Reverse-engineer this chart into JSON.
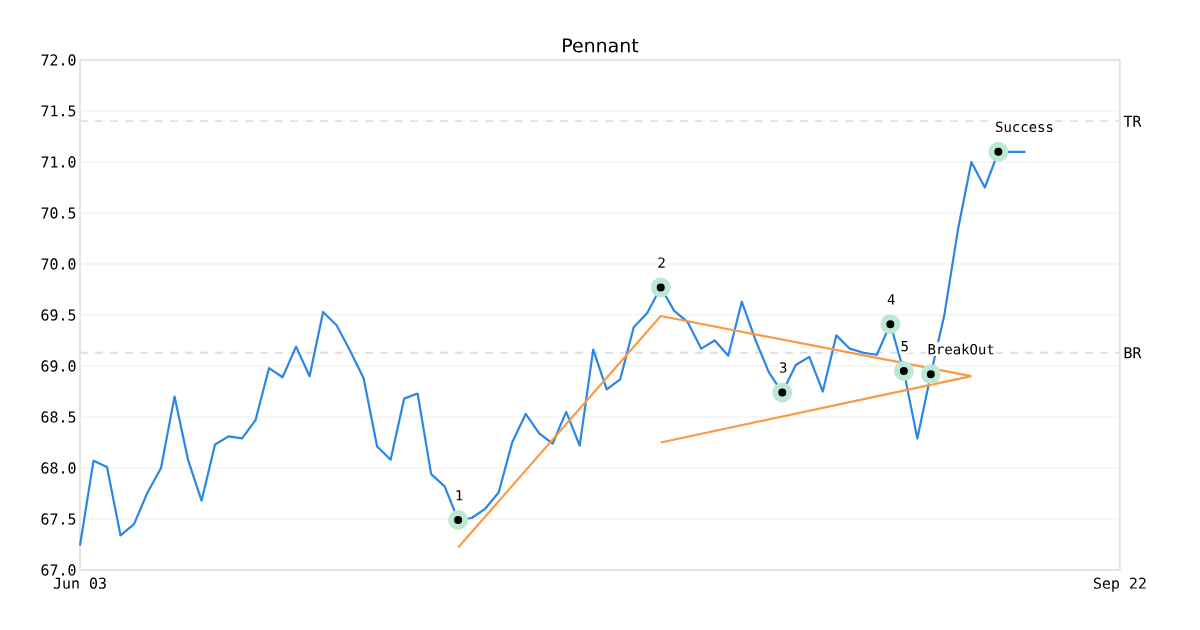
{
  "chart_data": {
    "type": "line",
    "title": "Pennant",
    "categories": [
      "Jun 03",
      null,
      null,
      null,
      null,
      null,
      null,
      null,
      null,
      null,
      null,
      null,
      null,
      null,
      null,
      null,
      null,
      null,
      null,
      null,
      null,
      null,
      null,
      null,
      null,
      null,
      null,
      null,
      null,
      null,
      null,
      null,
      null,
      null,
      null,
      null,
      null,
      null,
      null,
      null,
      null,
      null,
      null,
      null,
      null,
      null,
      null,
      null,
      null,
      null,
      null,
      null,
      null,
      null,
      null,
      null,
      null,
      null,
      null,
      null,
      null,
      null,
      null,
      null,
      null,
      null,
      null,
      null,
      null,
      null,
      null,
      null,
      null,
      null,
      null,
      null,
      null,
      "Sep 22"
    ],
    "series": [
      {
        "color": "#2b87e3",
        "values": [
          67.24,
          68.07,
          68.01,
          67.34,
          67.45,
          67.76,
          68.0,
          68.7,
          68.08,
          67.68,
          68.23,
          68.31,
          68.29,
          68.47,
          68.98,
          68.89,
          69.19,
          68.9,
          69.53,
          69.4,
          69.15,
          68.88,
          68.21,
          68.08,
          68.68,
          68.73,
          67.94,
          67.82,
          67.49,
          67.51,
          67.6,
          67.76,
          68.25,
          68.53,
          68.34,
          68.24,
          68.55,
          68.22,
          69.16,
          68.77,
          68.87,
          69.38,
          69.52,
          69.77,
          69.54,
          69.43,
          69.17,
          69.25,
          69.1,
          69.63,
          69.26,
          68.94,
          68.74,
          69.01,
          69.09,
          68.75,
          69.3,
          69.17,
          69.13,
          69.11,
          69.41,
          68.95,
          68.29,
          68.92,
          69.5,
          70.33,
          71.0,
          70.75,
          71.1,
          71.1,
          71.1,
          null,
          null,
          null,
          null,
          null,
          null,
          null
        ]
      },
      {
        "color": "#fb9a45",
        "values": [
          null,
          null,
          null,
          null,
          null,
          null,
          null,
          null,
          null,
          null,
          null,
          null,
          null,
          null,
          null,
          null,
          null,
          null,
          null,
          null,
          null,
          null,
          null,
          null,
          null,
          null,
          null,
          null,
          67.22,
          null,
          null,
          null,
          null,
          null,
          null,
          null,
          null,
          null,
          null,
          null,
          null,
          null,
          null,
          69.49,
          null,
          null,
          null,
          null,
          null,
          null,
          null,
          null,
          null,
          null,
          null,
          null,
          null,
          null,
          null,
          null,
          null,
          null,
          null,
          null,
          null,
          null,
          68.9,
          null,
          null,
          null,
          null,
          null,
          null,
          null,
          null,
          null,
          null,
          null
        ]
      },
      {
        "color": "#fb9a45",
        "values": [
          null,
          null,
          null,
          null,
          null,
          null,
          null,
          null,
          null,
          null,
          null,
          null,
          null,
          null,
          null,
          null,
          null,
          null,
          null,
          null,
          null,
          null,
          null,
          null,
          null,
          null,
          null,
          null,
          null,
          null,
          null,
          null,
          null,
          null,
          null,
          null,
          null,
          null,
          null,
          null,
          null,
          null,
          null,
          68.25,
          null,
          null,
          null,
          null,
          null,
          null,
          null,
          null,
          null,
          null,
          null,
          null,
          null,
          null,
          null,
          null,
          null,
          null,
          null,
          null,
          null,
          null,
          68.9,
          null,
          null,
          null,
          null,
          null,
          null,
          null,
          null,
          null,
          null,
          null
        ]
      },
      {
        "type": "scatter",
        "color": "#000000",
        "values": [
          null,
          null,
          null,
          null,
          null,
          null,
          null,
          null,
          null,
          null,
          null,
          null,
          null,
          null,
          null,
          null,
          null,
          null,
          null,
          null,
          null,
          null,
          null,
          null,
          null,
          null,
          null,
          null,
          67.49,
          null,
          null,
          null,
          null,
          null,
          null,
          null,
          null,
          null,
          null,
          null,
          null,
          null,
          null,
          69.77,
          null,
          null,
          null,
          null,
          null,
          null,
          null,
          null,
          68.74,
          null,
          null,
          null,
          null,
          null,
          null,
          null,
          69.41,
          68.95,
          null,
          68.92,
          null,
          null,
          null,
          null,
          71.1,
          null,
          null,
          null,
          null,
          null,
          null,
          null,
          null,
          null
        ]
      }
    ],
    "ylim": [
      67,
      72
    ],
    "yticks": [
      {
        "value": 67,
        "label": "67.0"
      },
      67.5,
      {
        "value": 68,
        "label": "68.0"
      },
      68.5,
      {
        "value": 69,
        "label": "69.0"
      },
      69.5,
      {
        "value": 70,
        "label": "70.0"
      },
      70.5,
      {
        "value": 71,
        "label": "71.0"
      },
      71.5,
      {
        "value": 72,
        "label": "72.0"
      }
    ],
    "grid": "y",
    "annotations": [
      {
        "text": "1",
        "y": 67.49
      },
      {
        "text": "2",
        "y": 69.77
      },
      {
        "text": "3",
        "y": 68.74
      },
      {
        "text": "4",
        "y": 69.41
      },
      {
        "text": "5",
        "y": 68.95
      },
      {
        "text": "BreakOut",
        "y": 68.92
      },
      {
        "text": "Success",
        "y": 71.1
      }
    ],
    "ref_lines": [
      {
        "axis": "y",
        "value": 71.4,
        "label": "TR",
        "color": "#e0e0e0",
        "line_style": "dashed"
      },
      {
        "axis": "y",
        "value": 69.13,
        "label": "BR",
        "color": "#e0e0e0",
        "line_style": "dashed"
      }
    ]
  }
}
